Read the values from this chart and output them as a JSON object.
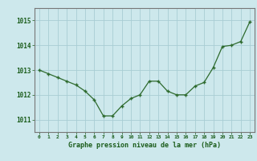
{
  "x": [
    0,
    1,
    2,
    3,
    4,
    5,
    6,
    7,
    8,
    9,
    10,
    11,
    12,
    13,
    14,
    15,
    16,
    17,
    18,
    19,
    20,
    21,
    22,
    23
  ],
  "y": [
    1013.0,
    1012.85,
    1012.7,
    1012.55,
    1012.4,
    1012.15,
    1011.8,
    1011.15,
    1011.15,
    1011.55,
    1011.85,
    1012.0,
    1012.55,
    1012.55,
    1012.15,
    1012.0,
    1012.0,
    1012.35,
    1012.5,
    1013.1,
    1013.95,
    1014.0,
    1014.15,
    1014.95
  ],
  "line_color": "#2d6a2d",
  "marker": "+",
  "bg_color": "#cde8ec",
  "grid_color": "#a8cdd4",
  "xlabel": "Graphe pression niveau de la mer (hPa)",
  "xlabel_color": "#1a5c1a",
  "tick_color": "#1a5c1a",
  "ylim": [
    1010.5,
    1015.5
  ],
  "xlim": [
    -0.5,
    23.5
  ],
  "yticks": [
    1011,
    1012,
    1013,
    1014,
    1015
  ],
  "xticks": [
    0,
    1,
    2,
    3,
    4,
    5,
    6,
    7,
    8,
    9,
    10,
    11,
    12,
    13,
    14,
    15,
    16,
    17,
    18,
    19,
    20,
    21,
    22,
    23
  ],
  "figsize": [
    3.2,
    2.0
  ],
  "dpi": 100
}
